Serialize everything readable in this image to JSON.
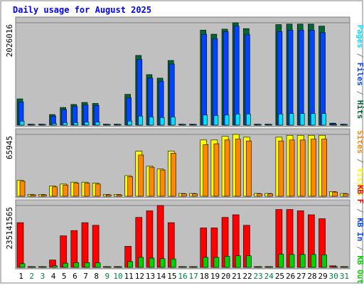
{
  "colors": {
    "background": "#ffffff",
    "panel": "#c0c0c0",
    "frame": "#808080",
    "title": "#0000ff",
    "weekday_label": "#000000",
    "weekend_label": "#008040",
    "hits": "#006633",
    "files": "#0044ff",
    "pages": "#00e0ff",
    "visits": "#ffff00",
    "sites": "#ff8800",
    "kb_in": "#ff0000",
    "kb_out": "#00d000"
  },
  "chart_data": {
    "type": "bar",
    "title": "Daily usage for August 2025",
    "categories": [
      "1",
      "2",
      "3",
      "4",
      "5",
      "6",
      "7",
      "8",
      "9",
      "10",
      "11",
      "12",
      "13",
      "14",
      "15",
      "16",
      "17",
      "18",
      "19",
      "20",
      "21",
      "22",
      "23",
      "24",
      "25",
      "26",
      "27",
      "28",
      "29",
      "30",
      "31"
    ],
    "weekend_days": [
      "2",
      "3",
      "9",
      "10",
      "16",
      "17",
      "23",
      "24",
      "30",
      "31"
    ],
    "panels": [
      {
        "id": "hits-files-pages",
        "ymax_label": "2026016",
        "ymax": 2026016,
        "legend": [
          {
            "text": "Pages",
            "color_key": "pages"
          },
          {
            "text": " / ",
            "color_key": "frame"
          },
          {
            "text": "Files",
            "color_key": "files"
          },
          {
            "text": " / ",
            "color_key": "frame"
          },
          {
            "text": "Hits",
            "color_key": "hits"
          }
        ],
        "series": [
          {
            "name": "Hits",
            "color_key": "hits",
            "values": [
              520000,
              20000,
              20000,
              210000,
              350000,
              410000,
              450000,
              430000,
              20000,
              20000,
              610000,
              1380000,
              1000000,
              930000,
              1280000,
              20000,
              20000,
              1880000,
              1800000,
              1900000,
              2026016,
              1910000,
              20000,
              20000,
              1990000,
              2000000,
              2000000,
              2000000,
              1960000,
              40000,
              20000
            ]
          },
          {
            "name": "Files",
            "color_key": "files",
            "values": [
              460000,
              10000,
              10000,
              180000,
              310000,
              370000,
              400000,
              390000,
              10000,
              10000,
              540000,
              1300000,
              930000,
              870000,
              1210000,
              10000,
              10000,
              1800000,
              1710000,
              1850000,
              1960000,
              1790000,
              10000,
              10000,
              1850000,
              1880000,
              1880000,
              1880000,
              1830000,
              30000,
              10000
            ]
          },
          {
            "name": "Pages",
            "color_key": "pages",
            "values": [
              80000,
              5000,
              5000,
              30000,
              50000,
              50000,
              60000,
              60000,
              5000,
              5000,
              80000,
              180000,
              160000,
              150000,
              160000,
              5000,
              5000,
              200000,
              190000,
              200000,
              220000,
              220000,
              5000,
              5000,
              220000,
              230000,
              230000,
              230000,
              230000,
              10000,
              5000
            ]
          }
        ]
      },
      {
        "id": "visits-sites",
        "ymax_label": "65945",
        "ymax": 65945,
        "legend": [
          {
            "text": "Sites",
            "color_key": "sites"
          },
          {
            "text": " / ",
            "color_key": "frame"
          },
          {
            "text": "Visits",
            "color_key": "visits"
          }
        ],
        "series": [
          {
            "name": "Visits",
            "color_key": "visits",
            "values": [
              17000,
              2000,
              2000,
              11000,
              13000,
              15000,
              15000,
              14000,
              2000,
              2000,
              22000,
              48000,
              32000,
              29000,
              48000,
              3000,
              3000,
              60000,
              60000,
              64000,
              65945,
              63000,
              3000,
              3000,
              63000,
              65000,
              65000,
              65000,
              65000,
              5000,
              3000
            ]
          },
          {
            "name": "Sites",
            "color_key": "sites",
            "values": [
              16000,
              1500,
              1500,
              10000,
              12000,
              14000,
              14000,
              13000,
              1500,
              1500,
              21000,
              44000,
              31000,
              28000,
              46000,
              2500,
              2500,
              55000,
              56000,
              60000,
              61000,
              59000,
              2500,
              2500,
              59000,
              60000,
              60000,
              61000,
              61000,
              4500,
              2500
            ]
          }
        ]
      },
      {
        "id": "kb",
        "ymax_label": "235141565",
        "ymax": 235141565,
        "legend": [
          {
            "text": "KB F",
            "color_key": "kb_in"
          },
          {
            "text": " / ",
            "color_key": "frame"
          },
          {
            "text": "KB In",
            "color_key": "files"
          },
          {
            "text": " / ",
            "color_key": "frame"
          },
          {
            "text": "KB Out",
            "color_key": "kb_out"
          }
        ],
        "series": [
          {
            "name": "KB F",
            "color_key": "kb_in",
            "values": [
              170000000,
              3000000,
              3000000,
              28000000,
              120000000,
              140000000,
              170000000,
              160000000,
              3000000,
              3000000,
              80000000,
              190000000,
              215000000,
              235141565,
              170000000,
              3000000,
              3000000,
              150000000,
              150000000,
              190000000,
              200000000,
              160000000,
              3000000,
              3000000,
              220000000,
              220000000,
              215000000,
              200000000,
              185000000,
              6000000,
              3000000
            ]
          },
          {
            "name": "KB Out",
            "color_key": "kb_out",
            "values": [
              14000000,
              1000000,
              1000000,
              6000000,
              16000000,
              18000000,
              18000000,
              17000000,
              1000000,
              1000000,
              22000000,
              38000000,
              35000000,
              33000000,
              32000000,
              1000000,
              1000000,
              38000000,
              38000000,
              42000000,
              44000000,
              44000000,
              1000000,
              1000000,
              50000000,
              49000000,
              49000000,
              49000000,
              48000000,
              2000000,
              1000000
            ]
          }
        ]
      }
    ]
  }
}
